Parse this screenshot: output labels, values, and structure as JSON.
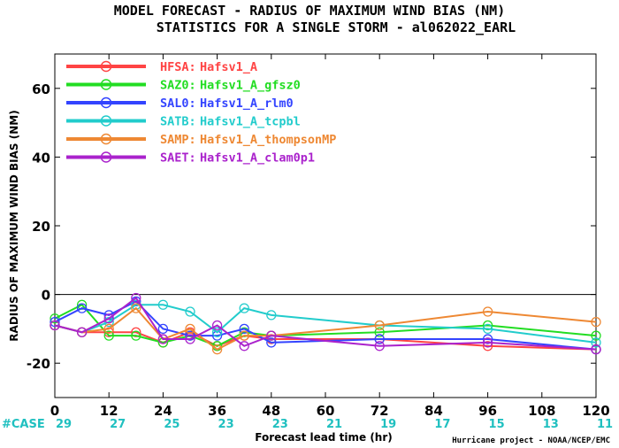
{
  "chart_data": {
    "type": "line",
    "title": "MODEL FORECAST - RADIUS OF MAXIMUM WIND BIAS (NM)",
    "subtitle": "STATISTICS FOR A SINGLE STORM - al062022_EARL",
    "xlabel": "Forecast lead time (hr)",
    "ylabel": "RADIUS OF MAXIMUM WIND BIAS (NM)",
    "xlim": [
      0,
      120
    ],
    "ylim": [
      -30,
      70
    ],
    "xticks": [
      0,
      12,
      24,
      36,
      48,
      60,
      72,
      84,
      96,
      108,
      120
    ],
    "yticks": [
      -20,
      0,
      20,
      40,
      60
    ],
    "zero_line": true,
    "legend_position": "top-left",
    "case_label": "#CASE",
    "case_x": [
      0,
      12,
      24,
      36,
      48,
      60,
      72,
      84,
      96,
      108,
      120
    ],
    "case_counts": [
      29,
      27,
      25,
      23,
      23,
      21,
      19,
      17,
      15,
      13,
      11
    ],
    "credit": "Hurricane project - NOAA/NCEP/EMC",
    "series": [
      {
        "name": "HFSA:",
        "desc": "Hafsv1_A",
        "color": "#ff4444",
        "x": [
          0,
          6,
          12,
          18,
          24,
          30,
          36,
          42,
          48,
          72,
          96,
          120
        ],
        "y": [
          -9,
          -11,
          -11,
          -11,
          -14,
          -11,
          -15,
          -12,
          -13,
          -13,
          -15,
          -16
        ]
      },
      {
        "name": "SAZ0:",
        "desc": "Hafsv1_A_gfsz0",
        "color": "#22dd22",
        "x": [
          0,
          6,
          12,
          18,
          24,
          30,
          36,
          42,
          48,
          72,
          96,
          120
        ],
        "y": [
          -7,
          -3,
          -12,
          -12,
          -14,
          -12,
          -15,
          -11,
          -12,
          -11,
          -9,
          -12
        ]
      },
      {
        "name": "SAL0:",
        "desc": "Hafsv1_A_rlm0",
        "color": "#3344ff",
        "x": [
          0,
          6,
          12,
          18,
          24,
          30,
          36,
          42,
          48,
          72,
          96,
          120
        ],
        "y": [
          -8,
          -4,
          -6,
          -2,
          -10,
          -12,
          -12,
          -10,
          -14,
          -13,
          -13,
          -16
        ]
      },
      {
        "name": "SATB:",
        "desc": "Hafsv1_A_tcpbl",
        "color": "#22cccc",
        "x": [
          0,
          6,
          12,
          18,
          24,
          30,
          36,
          42,
          48,
          72,
          96,
          120
        ],
        "y": [
          -9,
          -11,
          -8,
          -3,
          -3,
          -5,
          -11,
          -4,
          -6,
          -9,
          -10,
          -14
        ]
      },
      {
        "name": "SAMP:",
        "desc": "Hafsv1_A_thompsonMP",
        "color": "#ee8833",
        "x": [
          0,
          6,
          12,
          18,
          24,
          30,
          36,
          42,
          48,
          72,
          96,
          120
        ],
        "y": [
          -9,
          -11,
          -10,
          -4,
          -13,
          -10,
          -16,
          -12,
          -12,
          -9,
          -5,
          -8
        ]
      },
      {
        "name": "SAET:",
        "desc": "Hafsv1_A_clam0p1",
        "color": "#aa22cc",
        "x": [
          0,
          6,
          12,
          18,
          24,
          30,
          36,
          42,
          48,
          72,
          96,
          120
        ],
        "y": [
          -9,
          -11,
          -7,
          -1,
          -13,
          -13,
          -9,
          -15,
          -12,
          -15,
          -14,
          -16
        ]
      }
    ]
  }
}
